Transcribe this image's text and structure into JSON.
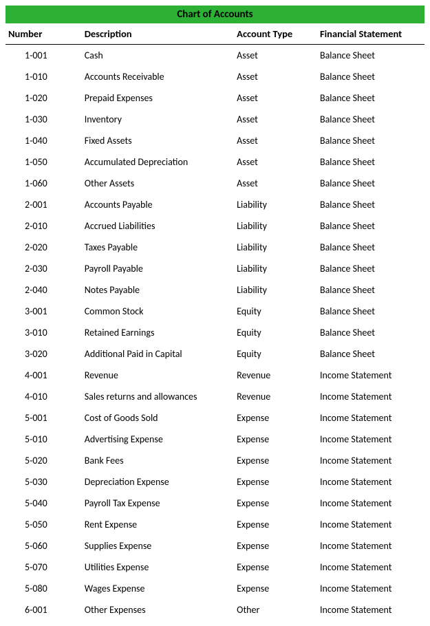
{
  "title": "Chart of Accounts",
  "title_bg": "#2cb135",
  "title_color": "#000000",
  "columns": [
    {
      "key": "number",
      "label": "Number"
    },
    {
      "key": "description",
      "label": "Description"
    },
    {
      "key": "account_type",
      "label": "Account Type"
    },
    {
      "key": "financial_statement",
      "label": "Financial Statement"
    }
  ],
  "rows": [
    {
      "number": "1-001",
      "description": "Cash",
      "account_type": "Asset",
      "financial_statement": "Balance Sheet"
    },
    {
      "number": "1-010",
      "description": "Accounts Receivable",
      "account_type": "Asset",
      "financial_statement": "Balance Sheet"
    },
    {
      "number": "1-020",
      "description": "Prepaid Expenses",
      "account_type": "Asset",
      "financial_statement": "Balance Sheet"
    },
    {
      "number": "1-030",
      "description": "Inventory",
      "account_type": "Asset",
      "financial_statement": "Balance Sheet"
    },
    {
      "number": "1-040",
      "description": "Fixed Assets",
      "account_type": "Asset",
      "financial_statement": "Balance Sheet"
    },
    {
      "number": "1-050",
      "description": "Accumulated Depreciation",
      "account_type": "Asset",
      "financial_statement": "Balance Sheet"
    },
    {
      "number": "1-060",
      "description": "Other Assets",
      "account_type": "Asset",
      "financial_statement": "Balance Sheet"
    },
    {
      "number": "2-001",
      "description": "Accounts Payable",
      "account_type": "Liability",
      "financial_statement": "Balance Sheet"
    },
    {
      "number": "2-010",
      "description": "Accrued Liabilities",
      "account_type": "Liability",
      "financial_statement": "Balance Sheet"
    },
    {
      "number": "2-020",
      "description": "Taxes Payable",
      "account_type": "Liability",
      "financial_statement": "Balance Sheet"
    },
    {
      "number": "2-030",
      "description": "Payroll Payable",
      "account_type": "Liability",
      "financial_statement": "Balance Sheet"
    },
    {
      "number": "2-040",
      "description": "Notes Payable",
      "account_type": "Liability",
      "financial_statement": "Balance Sheet"
    },
    {
      "number": "3-001",
      "description": "Common Stock",
      "account_type": "Equity",
      "financial_statement": "Balance Sheet"
    },
    {
      "number": "3-010",
      "description": "Retained Earnings",
      "account_type": "Equity",
      "financial_statement": "Balance Sheet"
    },
    {
      "number": "3-020",
      "description": "Additional Paid in Capital",
      "account_type": "Equity",
      "financial_statement": "Balance Sheet"
    },
    {
      "number": "4-001",
      "description": "Revenue",
      "account_type": "Revenue",
      "financial_statement": "Income Statement"
    },
    {
      "number": "4-010",
      "description": "Sales returns and allowances",
      "account_type": "Revenue",
      "financial_statement": "Income Statement"
    },
    {
      "number": "5-001",
      "description": "Cost of Goods Sold",
      "account_type": "Expense",
      "financial_statement": "Income Statement"
    },
    {
      "number": "5-010",
      "description": "Advertising Expense",
      "account_type": "Expense",
      "financial_statement": "Income Statement"
    },
    {
      "number": "5-020",
      "description": "Bank Fees",
      "account_type": "Expense",
      "financial_statement": "Income Statement"
    },
    {
      "number": "5-030",
      "description": "Depreciation Expense",
      "account_type": "Expense",
      "financial_statement": "Income Statement"
    },
    {
      "number": "5-040",
      "description": "Payroll Tax Expense",
      "account_type": "Expense",
      "financial_statement": "Income Statement"
    },
    {
      "number": "5-050",
      "description": "Rent Expense",
      "account_type": "Expense",
      "financial_statement": "Income Statement"
    },
    {
      "number": "5-060",
      "description": "Supplies Expense",
      "account_type": "Expense",
      "financial_statement": "Income Statement"
    },
    {
      "number": "5-070",
      "description": "Utilities Expense",
      "account_type": "Expense",
      "financial_statement": "Income Statement"
    },
    {
      "number": "5-080",
      "description": "Wages Expense",
      "account_type": "Expense",
      "financial_statement": "Income Statement"
    },
    {
      "number": "6-001",
      "description": "Other Expenses",
      "account_type": "Other",
      "financial_statement": "Income Statement"
    }
  ]
}
